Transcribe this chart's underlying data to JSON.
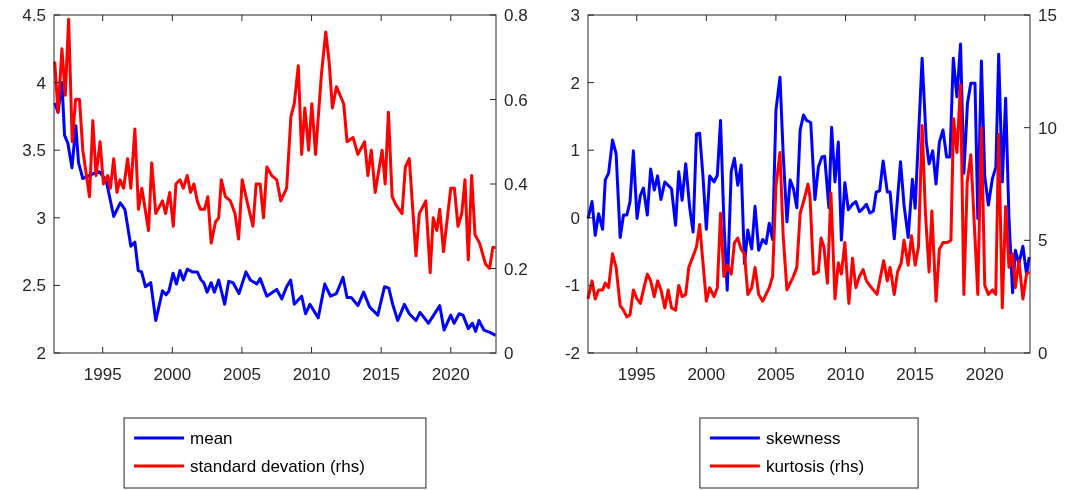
{
  "chart_data": [
    {
      "type": "line",
      "xlim": [
        1991.5,
        2023.25
      ],
      "xticks": [
        1995,
        2000,
        2005,
        2010,
        2015,
        2020
      ],
      "ylim": [
        2,
        4.5
      ],
      "yticks": [
        2,
        2.5,
        3,
        3.5,
        4,
        4.5
      ],
      "y2lim": [
        0,
        0.8
      ],
      "y2ticks": [
        0,
        0.2,
        0.4,
        0.6,
        0.8
      ],
      "legend": "bottom",
      "series": [
        {
          "name": "mean",
          "color": "#0000ff",
          "x": [
            1991.55,
            1991.79,
            1992.07,
            1992.26,
            1992.5,
            1992.79,
            1993.07,
            1993.26,
            1993.57,
            1994.4,
            1994.76,
            1995.24,
            1995.79,
            1996.26,
            1996.6,
            1997.02,
            1997.31,
            1997.55,
            1997.79,
            1998.07,
            1998.45,
            1998.81,
            1999.29,
            1999.55,
            1999.76,
            2000.05,
            2000.29,
            2000.55,
            2000.79,
            2001.07,
            2001.43,
            2001.79,
            2002.07,
            2002.26,
            2002.5,
            2002.79,
            2003.02,
            2003.33,
            2003.76,
            2004.05,
            2004.36,
            2004.79,
            2005.29,
            2005.6,
            2006.07,
            2006.31,
            2006.79,
            2007.5,
            2007.86,
            2008.21,
            2008.5,
            2008.76,
            2009.29,
            2009.57,
            2009.88,
            2010.48,
            2010.95,
            2011.36,
            2011.79,
            2012.26,
            2012.55,
            2012.86,
            2013.33,
            2013.74,
            2014.17,
            2014.76,
            2015.24,
            2015.55,
            2015.83,
            2016.19,
            2016.67,
            2017.02,
            2017.5,
            2017.79,
            2018.4,
            2019.21,
            2019.52,
            2020.0,
            2020.24,
            2020.6,
            2020.88,
            2021.26,
            2021.55,
            2021.79,
            2022.02,
            2022.38,
            2022.86,
            2023.21
          ],
          "values": [
            3.85,
            3.78,
            4.0,
            3.61,
            3.55,
            3.37,
            3.68,
            3.41,
            3.29,
            3.33,
            3.34,
            3.28,
            3.01,
            3.11,
            3.06,
            2.79,
            2.82,
            2.61,
            2.6,
            2.49,
            2.52,
            2.24,
            2.46,
            2.43,
            2.46,
            2.59,
            2.51,
            2.61,
            2.54,
            2.62,
            2.6,
            2.6,
            2.54,
            2.52,
            2.45,
            2.52,
            2.45,
            2.54,
            2.36,
            2.53,
            2.52,
            2.44,
            2.6,
            2.54,
            2.51,
            2.55,
            2.42,
            2.47,
            2.4,
            2.49,
            2.54,
            2.36,
            2.42,
            2.29,
            2.36,
            2.26,
            2.51,
            2.42,
            2.44,
            2.56,
            2.41,
            2.41,
            2.35,
            2.45,
            2.34,
            2.28,
            2.49,
            2.48,
            2.36,
            2.24,
            2.36,
            2.29,
            2.24,
            2.3,
            2.22,
            2.35,
            2.17,
            2.28,
            2.22,
            2.29,
            2.28,
            2.18,
            2.22,
            2.16,
            2.24,
            2.17,
            2.15,
            2.13
          ]
        },
        {
          "name": "standard devation (rhs)",
          "color": "#ff0000",
          "axis": "y2",
          "x": [
            1991.55,
            1991.79,
            1992.07,
            1992.31,
            1992.55,
            1992.81,
            1993.05,
            1993.33,
            1993.57,
            1994.05,
            1994.29,
            1994.52,
            1994.81,
            1995.05,
            1995.36,
            1995.55,
            1995.79,
            1996.02,
            1996.24,
            1996.5,
            1996.79,
            1997.02,
            1997.31,
            1997.57,
            1997.81,
            1998.29,
            1998.52,
            1998.81,
            1999.29,
            1999.52,
            1999.81,
            2000.07,
            2000.26,
            2000.55,
            2000.79,
            2001.07,
            2001.31,
            2001.55,
            2001.79,
            2002.02,
            2002.31,
            2002.55,
            2002.79,
            2003.1,
            2003.33,
            2003.52,
            2003.81,
            2004.17,
            2004.5,
            2004.76,
            2005.02,
            2005.36,
            2005.79,
            2006.02,
            2006.31,
            2006.55,
            2006.79,
            2007.14,
            2007.5,
            2007.79,
            2008.21,
            2008.52,
            2008.76,
            2009.05,
            2009.29,
            2009.52,
            2009.79,
            2010.02,
            2010.29,
            2010.71,
            2011.02,
            2011.26,
            2011.5,
            2011.79,
            2012.31,
            2012.55,
            2012.98,
            2013.33,
            2013.81,
            2014.05,
            2014.29,
            2014.57,
            2015.07,
            2015.29,
            2015.52,
            2015.79,
            2016.07,
            2016.5,
            2016.74,
            2017.02,
            2017.5,
            2017.74,
            2018.21,
            2018.52,
            2018.74,
            2019.0,
            2019.21,
            2019.48,
            2020.0,
            2020.26,
            2020.52,
            2020.79,
            2021.02,
            2021.26,
            2021.5,
            2021.74,
            2022.07,
            2022.5,
            2022.79,
            2023.02,
            2023.21
          ],
          "values": [
            0.69,
            0.57,
            0.72,
            0.61,
            0.79,
            0.5,
            0.6,
            0.6,
            0.48,
            0.37,
            0.55,
            0.42,
            0.5,
            0.4,
            0.42,
            0.39,
            0.46,
            0.38,
            0.41,
            0.39,
            0.46,
            0.39,
            0.53,
            0.34,
            0.39,
            0.29,
            0.45,
            0.33,
            0.36,
            0.33,
            0.38,
            0.3,
            0.4,
            0.41,
            0.39,
            0.42,
            0.38,
            0.4,
            0.36,
            0.34,
            0.34,
            0.37,
            0.26,
            0.31,
            0.32,
            0.41,
            0.37,
            0.36,
            0.33,
            0.27,
            0.41,
            0.36,
            0.3,
            0.4,
            0.4,
            0.32,
            0.44,
            0.42,
            0.41,
            0.36,
            0.39,
            0.56,
            0.59,
            0.68,
            0.47,
            0.58,
            0.48,
            0.59,
            0.47,
            0.66,
            0.76,
            0.69,
            0.58,
            0.63,
            0.59,
            0.5,
            0.51,
            0.47,
            0.5,
            0.42,
            0.48,
            0.38,
            0.48,
            0.4,
            0.57,
            0.37,
            0.35,
            0.33,
            0.44,
            0.46,
            0.23,
            0.33,
            0.36,
            0.19,
            0.32,
            0.29,
            0.34,
            0.24,
            0.39,
            0.39,
            0.3,
            0.33,
            0.41,
            0.22,
            0.42,
            0.28,
            0.26,
            0.21,
            0.2,
            0.25,
            0.25
          ]
        }
      ]
    },
    {
      "type": "line",
      "xlim": [
        1991.5,
        2023.25
      ],
      "xticks": [
        1995,
        2000,
        2005,
        2010,
        2015,
        2020
      ],
      "ylim": [
        -2,
        3
      ],
      "yticks": [
        -2,
        -1,
        0,
        1,
        2,
        3
      ],
      "y2lim": [
        0,
        15
      ],
      "y2ticks": [
        0,
        5,
        10,
        15
      ],
      "legend": "bottom",
      "series": [
        {
          "name": "skewness",
          "color": "#0000ff",
          "x": [
            1991.5,
            1991.79,
            1992.02,
            1992.26,
            1992.55,
            1992.74,
            1992.98,
            1993.26,
            1993.52,
            1993.81,
            1994.05,
            1994.29,
            1994.52,
            1994.76,
            1995.02,
            1995.26,
            1995.48,
            1995.76,
            1996.0,
            1996.26,
            1996.5,
            1996.74,
            1997.02,
            1997.5,
            1997.79,
            1998.02,
            1998.26,
            1998.52,
            1998.81,
            1999.05,
            1999.29,
            1999.52,
            1999.76,
            2000.0,
            2000.24,
            2000.55,
            2000.79,
            2001.02,
            2001.26,
            2001.5,
            2001.79,
            2002.02,
            2002.26,
            2002.5,
            2002.74,
            2002.98,
            2003.26,
            2003.5,
            2003.76,
            2004.05,
            2004.29,
            2004.52,
            2004.76,
            2005.0,
            2005.29,
            2005.52,
            2005.79,
            2006.02,
            2006.26,
            2006.5,
            2006.74,
            2006.98,
            2007.2,
            2007.5,
            2007.8,
            2008.05,
            2008.3,
            2008.5,
            2008.8,
            2009.0,
            2009.24,
            2009.48,
            2009.7,
            2009.95,
            2010.2,
            2010.5,
            2010.74,
            2011.0,
            2011.26,
            2011.5,
            2011.74,
            2012.0,
            2012.2,
            2012.45,
            2012.7,
            2013.0,
            2013.2,
            2013.5,
            2013.95,
            2014.2,
            2014.5,
            2014.8,
            2015.0,
            2015.5,
            2015.8,
            2016.0,
            2016.26,
            2016.5,
            2016.74,
            2017.0,
            2017.26,
            2017.5,
            2017.74,
            2018.0,
            2018.26,
            2018.5,
            2018.76,
            2019.0,
            2019.3,
            2019.5,
            2019.76,
            2020.0,
            2020.26,
            2020.55,
            2020.8,
            2021.0,
            2021.26,
            2021.5,
            2021.74,
            2022.0,
            2022.2,
            2022.45,
            2022.74,
            2023.0,
            2023.2
          ],
          "values": [
            -0.01,
            0.24,
            -0.26,
            0.06,
            -0.17,
            0.56,
            0.66,
            1.15,
            0.95,
            -0.29,
            0.04,
            0.04,
            0.24,
            0.99,
            -0.01,
            0.33,
            0.44,
            0.04,
            0.72,
            0.41,
            0.62,
            0.27,
            0.53,
            0.43,
            -0.11,
            0.68,
            0.26,
            0.8,
            0.14,
            -0.21,
            1.24,
            1.25,
            0.61,
            -0.17,
            0.62,
            0.53,
            0.63,
            1.44,
            -0.04,
            -1.07,
            0.69,
            0.88,
            0.48,
            0.78,
            -0.68,
            -0.18,
            -0.46,
            0.17,
            -0.48,
            -0.32,
            -0.38,
            -0.08,
            -0.32,
            1.59,
            2.08,
            0.95,
            -0.06,
            0.56,
            0.43,
            0.15,
            1.3,
            1.52,
            1.44,
            1.41,
            0.27,
            0.75,
            0.9,
            0.91,
            0.15,
            1.34,
            0.53,
            1.12,
            -0.33,
            0.52,
            0.12,
            0.2,
            0.24,
            0.09,
            0.14,
            0.2,
            0.07,
            0.1,
            0.38,
            0.4,
            0.84,
            0.38,
            0.38,
            -0.31,
            0.83,
            0.19,
            -0.29,
            0.57,
            0.14,
            2.36,
            1.12,
            0.8,
            0.99,
            0.5,
            1.12,
            1.3,
            0.9,
            0.9,
            2.36,
            1.79,
            2.57,
            0.66,
            1.7,
            1.99,
            1.99,
            -0.01,
            2.32,
            0.61,
            0.19,
            0.58,
            0.75,
            2.42,
            0.53,
            1.77,
            -0.01,
            -1.11,
            -0.48,
            -0.68,
            -0.42,
            -0.83,
            -0.58
          ]
        },
        {
          "name": "kurtosis (rhs)",
          "color": "#ff0000",
          "axis": "y2",
          "x": [
            1991.5,
            1991.79,
            1992.02,
            1992.26,
            1992.55,
            1992.74,
            1992.98,
            1993.26,
            1993.52,
            1993.81,
            1994.05,
            1994.29,
            1994.52,
            1994.76,
            1995.02,
            1995.26,
            1995.48,
            1995.76,
            1996.0,
            1996.26,
            1996.5,
            1996.74,
            1997.02,
            1997.26,
            1997.5,
            1997.79,
            1998.02,
            1998.26,
            1998.52,
            1998.74,
            1999.05,
            1999.29,
            1999.52,
            1999.76,
            2000.0,
            2000.24,
            2000.55,
            2000.79,
            2001.02,
            2001.26,
            2001.5,
            2001.79,
            2002.02,
            2002.26,
            2002.5,
            2002.74,
            2002.98,
            2003.26,
            2003.5,
            2003.76,
            2004.05,
            2004.29,
            2004.52,
            2004.76,
            2005.0,
            2005.29,
            2005.52,
            2005.79,
            2006.02,
            2006.26,
            2006.5,
            2006.74,
            2007.02,
            2007.3,
            2007.45,
            2007.7,
            2008.05,
            2008.24,
            2008.45,
            2008.7,
            2008.95,
            2009.24,
            2009.48,
            2009.7,
            2009.95,
            2010.24,
            2010.5,
            2010.74,
            2011.0,
            2011.26,
            2011.5,
            2011.86,
            2012.26,
            2012.74,
            2013.0,
            2013.2,
            2013.5,
            2013.74,
            2014.0,
            2014.2,
            2014.5,
            2014.74,
            2015.0,
            2015.24,
            2015.5,
            2015.74,
            2016.0,
            2016.2,
            2016.5,
            2016.74,
            2017.0,
            2017.33,
            2017.57,
            2017.76,
            2018.0,
            2018.26,
            2018.5,
            2018.74,
            2019.0,
            2019.5,
            2019.76,
            2020.0,
            2020.26,
            2020.55,
            2020.79,
            2021.0,
            2021.26,
            2021.5,
            2021.74,
            2022.0,
            2022.2,
            2022.45,
            2022.74,
            2023.0,
            2023.2
          ],
          "values": [
            2.4,
            3.2,
            2.4,
            2.8,
            2.8,
            3.1,
            2.9,
            4.4,
            3.8,
            2.1,
            1.9,
            1.6,
            1.7,
            2.8,
            2.4,
            2.2,
            2.8,
            3.5,
            3.2,
            2.5,
            3.2,
            2.8,
            2.0,
            2.8,
            2.0,
            1.9,
            3.0,
            2.5,
            2.6,
            3.8,
            4.3,
            4.7,
            5.7,
            4.0,
            2.3,
            2.9,
            2.5,
            2.9,
            6.2,
            3.4,
            3.9,
            3.5,
            4.9,
            5.1,
            4.6,
            4.4,
            2.6,
            2.9,
            3.8,
            2.6,
            2.3,
            2.6,
            2.9,
            3.4,
            7.4,
            8.9,
            5.2,
            2.8,
            3.1,
            3.4,
            3.8,
            6.2,
            6.8,
            7.5,
            6.9,
            3.5,
            3.6,
            5.1,
            4.7,
            3.1,
            7.1,
            2.4,
            4.0,
            3.5,
            4.9,
            2.2,
            4.2,
            2.9,
            3.4,
            3.7,
            3.2,
            2.9,
            2.6,
            4.1,
            3.2,
            3.8,
            2.6,
            3.6,
            4.0,
            5.0,
            3.9,
            5.2,
            3.9,
            4.7,
            10.1,
            6.2,
            3.6,
            6.3,
            2.3,
            4.6,
            4.9,
            4.9,
            5.0,
            10.4,
            8.9,
            11.9,
            2.6,
            7.6,
            8.8,
            2.6,
            10.0,
            3.0,
            2.6,
            2.8,
            2.6,
            9.7,
            2.0,
            6.5,
            3.8,
            4.4,
            2.9,
            4.1,
            2.4,
            3.5,
            3.6
          ]
        }
      ]
    }
  ]
}
